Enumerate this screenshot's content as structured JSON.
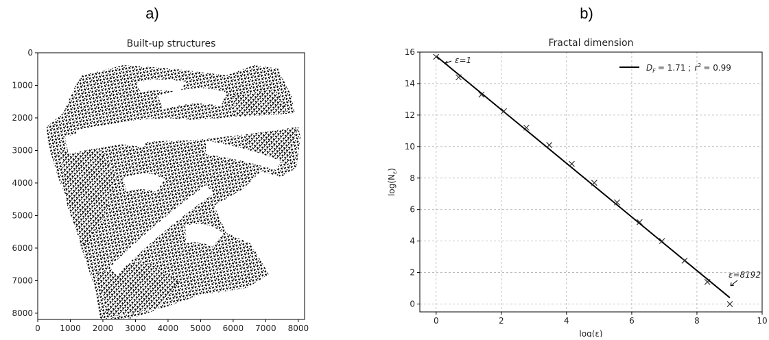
{
  "panels": {
    "a_label": "a)",
    "b_label": "b)"
  },
  "chart_data": [
    {
      "type": "image",
      "title": "Built-up structures",
      "xlim": [
        0,
        8192
      ],
      "ylim": [
        8192,
        0
      ],
      "y_inverted": true,
      "xticks": [
        0,
        1000,
        2000,
        3000,
        4000,
        5000,
        6000,
        7000,
        8000
      ],
      "yticks": [
        0,
        1000,
        2000,
        3000,
        4000,
        5000,
        6000,
        7000,
        8000
      ],
      "xlabel": "",
      "ylabel": ""
    },
    {
      "type": "scatter",
      "title": "Fractal dimension",
      "xlabel": "log(ε)",
      "ylabel": "log(Nε)",
      "xlim": [
        -0.5,
        10
      ],
      "ylim": [
        -0.5,
        16
      ],
      "xticks": [
        0,
        2,
        4,
        6,
        8,
        10
      ],
      "yticks": [
        0,
        2,
        4,
        6,
        8,
        10,
        12,
        14,
        16
      ],
      "grid": true,
      "legend_position": "top-right",
      "legend_text": "D_F = 1.71 ; r² = 0.99",
      "legend_main": "= 1.71 ;",
      "legend_r2": "= 0.99",
      "annotations": [
        {
          "text": "ε=1",
          "x": 0,
          "y": 15.7
        },
        {
          "text": "ε=8192",
          "x": 9.01,
          "y": 0
        }
      ],
      "series": [
        {
          "marker": "x",
          "x": [
            0,
            0.69,
            1.39,
            2.08,
            2.77,
            3.47,
            4.16,
            4.85,
            5.55,
            6.24,
            6.93,
            7.62,
            8.32,
            9.01
          ],
          "y": [
            15.7,
            14.4,
            13.3,
            12.25,
            11.2,
            10.1,
            8.9,
            7.7,
            6.45,
            5.2,
            4.0,
            2.75,
            1.4,
            0.0
          ]
        },
        {
          "type": "line",
          "x": [
            0,
            9.01
          ],
          "y": [
            15.75,
            0.4
          ]
        }
      ]
    }
  ]
}
